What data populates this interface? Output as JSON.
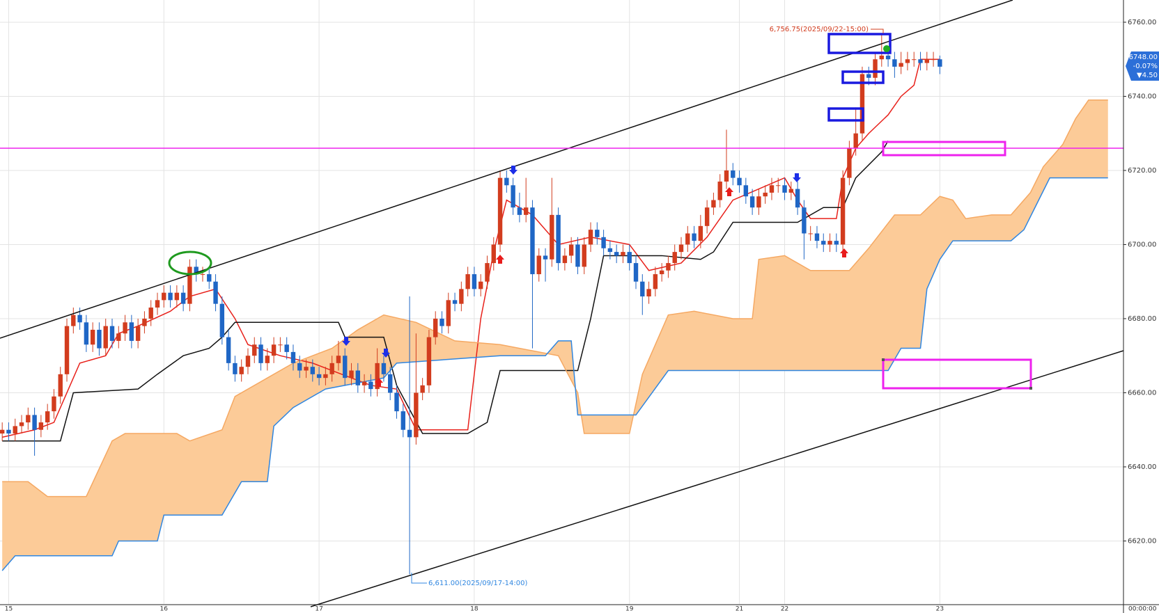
{
  "chart_data": {
    "type": "candlestick",
    "categories": [
      null,
      "15",
      null,
      null,
      null,
      null,
      null,
      null,
      null,
      null,
      null,
      null,
      null,
      null,
      null,
      null,
      null,
      null,
      null,
      null,
      null,
      null,
      null,
      null,
      null,
      "16",
      null,
      null,
      null,
      null,
      null,
      null,
      null,
      null,
      null,
      null,
      null,
      null,
      null,
      null,
      null,
      null,
      null,
      null,
      null,
      null,
      null,
      null,
      null,
      "17",
      null,
      null,
      null,
      null,
      null,
      null,
      null,
      null,
      null,
      null,
      null,
      null,
      null,
      null,
      null,
      null,
      null,
      null,
      null,
      null,
      null,
      null,
      null,
      "18",
      null,
      null,
      null,
      null,
      null,
      null,
      null,
      null,
      null,
      null,
      null,
      null,
      null,
      null,
      null,
      null,
      null,
      null,
      null,
      null,
      null,
      null,
      null,
      "19",
      null,
      null,
      null,
      null,
      null,
      null,
      null,
      null,
      null,
      null,
      null,
      null,
      null,
      null,
      null,
      null,
      "21",
      null,
      null,
      null,
      null,
      null,
      null,
      "22",
      null,
      null,
      null,
      null,
      null,
      null,
      null,
      null,
      null,
      null,
      null,
      null,
      null,
      null,
      null,
      null,
      null,
      null,
      null,
      null,
      null,
      null,
      null,
      "23"
    ],
    "open": [
      6649,
      6650,
      6649,
      6651,
      6652,
      6654,
      6650,
      6652,
      6655,
      6659,
      6665,
      6678,
      6681,
      6679,
      6673,
      6677,
      6672,
      6678,
      6674,
      6676,
      6679,
      6674,
      6678,
      6680,
      6683,
      6685,
      6687,
      6685,
      6687,
      6684,
      6694,
      6692,
      6692,
      6690,
      6684,
      6675,
      6668,
      6665,
      6667,
      6670,
      6673,
      6668,
      6670,
      6673,
      6673,
      6671,
      6668,
      6666,
      6667,
      6665,
      6664,
      6665,
      6668,
      6670,
      6664,
      6666,
      6662,
      6663,
      6661,
      6668,
      6665,
      6660,
      6655,
      6650,
      6648,
      6660,
      6662,
      6675,
      6680,
      6678,
      6685,
      6684,
      6688,
      6692,
      6688,
      6690,
      6695,
      6700,
      6718,
      6716,
      6710,
      6708,
      6710,
      6692,
      6697,
      6696,
      6708,
      6695,
      6697,
      6700,
      6694,
      6700,
      6704,
      6702,
      6699,
      6698,
      6697,
      6698,
      6695,
      6690,
      6686,
      6688,
      6692,
      6693,
      6695,
      6698,
      6700,
      6703,
      6701,
      6705,
      6710,
      6712,
      6717,
      6720,
      6718,
      6716,
      6713,
      6710,
      6713,
      6714,
      6716,
      6716,
      6714,
      6715,
      6710,
      6703,
      6703,
      6701,
      6700,
      6701,
      6700,
      6718,
      6726,
      6730,
      6746,
      6745,
      6750,
      6751,
      6750,
      6748,
      6749,
      6750,
      6750,
      6749,
      6750,
      6750
    ],
    "high": [
      6652,
      6652,
      6653,
      6654,
      6656,
      6656,
      6654,
      6657,
      6661,
      6667,
      6680,
      6683,
      6683,
      6681,
      6679,
      6679,
      6680,
      6680,
      6678,
      6681,
      6681,
      6680,
      6682,
      6685,
      6687,
      6689,
      6689,
      6689,
      6689,
      6696,
      6696,
      6694,
      6694,
      6692,
      6686,
      6677,
      6670,
      6669,
      6672,
      6675,
      6675,
      6672,
      6675,
      6675,
      6675,
      6673,
      6670,
      6669,
      6669,
      6667,
      6667,
      6670,
      6674,
      6672,
      6668,
      6668,
      6665,
      6665,
      6672,
      6670,
      6667,
      6662,
      6657,
      6686,
      6676,
      6664,
      6677,
      6682,
      6682,
      6687,
      6687,
      6690,
      6694,
      6694,
      6692,
      6697,
      6702,
      6720,
      6720,
      6718,
      6714,
      6718,
      6712,
      6699,
      6699,
      6718,
      6710,
      6699,
      6702,
      6702,
      6702,
      6706,
      6706,
      6704,
      6701,
      6700,
      6700,
      6700,
      6697,
      6692,
      6690,
      6694,
      6695,
      6697,
      6700,
      6702,
      6705,
      6705,
      6708,
      6712,
      6714,
      6719,
      6731,
      6722,
      6720,
      6718,
      6715,
      6715,
      6716,
      6718,
      6718,
      6718,
      6717,
      6717,
      6712,
      6705,
      6705,
      6703,
      6703,
      6703,
      6720,
      6728,
      6737,
      6748,
      6748,
      6752,
      6756.75,
      6753,
      6752,
      6752,
      6752,
      6752,
      6752,
      6752,
      6752,
      6751
    ],
    "low": [
      6647,
      6647,
      6647,
      6649,
      6650,
      6643,
      6648,
      6650,
      6653,
      6657,
      6663,
      6676,
      6677,
      6671,
      6671,
      6670,
      6670,
      6672,
      6672,
      6674,
      6672,
      6672,
      6676,
      6678,
      6681,
      6683,
      6683,
      6683,
      6682,
      6682,
      6690,
      6690,
      6688,
      6682,
      6673,
      6666,
      6663,
      6663,
      6665,
      6668,
      6666,
      6666,
      6668,
      6671,
      6669,
      6666,
      6664,
      6664,
      6663,
      6662,
      6662,
      6663,
      6666,
      6662,
      6662,
      6660,
      6660,
      6659,
      6659,
      6663,
      6658,
      6653,
      6648,
      6611,
      6646,
      6658,
      6660,
      6673,
      6676,
      6676,
      6682,
      6682,
      6686,
      6686,
      6686,
      6688,
      6693,
      6698,
      6714,
      6708,
      6706,
      6706,
      6672,
      6690,
      6690,
      6694,
      6693,
      6693,
      6695,
      6692,
      6692,
      6698,
      6700,
      6697,
      6696,
      6695,
      6695,
      6693,
      6688,
      6681,
      6684,
      6686,
      6690,
      6691,
      6693,
      6696,
      6698,
      6699,
      6699,
      6703,
      6708,
      6710,
      6715,
      6716,
      6714,
      6711,
      6708,
      6708,
      6711,
      6712,
      6714,
      6712,
      6712,
      6708,
      6696,
      6701,
      6699,
      6698,
      6698,
      6698,
      6698,
      6716,
      6724,
      6728,
      6743,
      6743,
      6748,
      6748,
      6745,
      6746,
      6747,
      6748,
      6747,
      6747,
      6748,
      6746
    ],
    "close": [
      6650,
      6649,
      6651,
      6652,
      6654,
      6650,
      6652,
      6655,
      6659,
      6665,
      6678,
      6681,
      6679,
      6673,
      6677,
      6672,
      6678,
      6674,
      6676,
      6679,
      6674,
      6678,
      6680,
      6683,
      6685,
      6687,
      6685,
      6687,
      6684,
      6694,
      6692,
      6692,
      6690,
      6684,
      6675,
      6668,
      6665,
      6667,
      6670,
      6673,
      6668,
      6670,
      6673,
      6673,
      6671,
      6668,
      6666,
      6667,
      6665,
      6664,
      6665,
      6668,
      6670,
      6664,
      6666,
      6662,
      6663,
      6661,
      6668,
      6665,
      6660,
      6655,
      6650,
      6648,
      6660,
      6662,
      6675,
      6680,
      6678,
      6685,
      6684,
      6688,
      6692,
      6688,
      6690,
      6695,
      6700,
      6718,
      6716,
      6710,
      6708,
      6710,
      6692,
      6697,
      6696,
      6708,
      6695,
      6697,
      6700,
      6694,
      6700,
      6704,
      6702,
      6699,
      6698,
      6697,
      6698,
      6695,
      6690,
      6686,
      6688,
      6692,
      6693,
      6695,
      6698,
      6700,
      6703,
      6701,
      6705,
      6710,
      6712,
      6717,
      6720,
      6718,
      6716,
      6713,
      6710,
      6713,
      6714,
      6716,
      6716,
      6714,
      6715,
      6710,
      6703,
      6703,
      6701,
      6700,
      6701,
      6700,
      6718,
      6726,
      6730,
      6746,
      6745,
      6750,
      6751,
      6750,
      6748,
      6749,
      6750,
      6750,
      6749,
      6750,
      6750,
      6748
    ],
    "up_color": "#d23c1e",
    "down_color": "#1f66c5",
    "lines": [
      {
        "color": "#e8201a",
        "x": [
          0,
          5,
          8,
          10,
          12,
          16,
          18,
          21,
          26,
          29,
          33,
          36,
          38,
          43,
          48,
          51,
          54,
          57,
          61,
          64,
          72,
          74,
          76,
          78,
          82,
          86,
          91,
          97,
          100,
          105,
          109,
          113,
          117,
          121,
          123,
          125,
          129,
          130,
          132,
          134,
          137,
          139,
          141,
          142,
          145
        ],
        "values": [
          6648,
          6650,
          6652,
          6660,
          6668,
          6670,
          6676,
          6678,
          6682,
          6686,
          6688,
          6680,
          6673,
          6670,
          6668,
          6666,
          6664,
          6662,
          6661,
          6650,
          6650,
          6680,
          6698,
          6712,
          6708,
          6700,
          6702,
          6700,
          6693,
          6695,
          6702,
          6712,
          6715,
          6718,
          6712,
          6707,
          6707,
          6718,
          6726,
          6730,
          6735,
          6740,
          6743,
          6750,
          6750
        ]
      },
      {
        "color": "#111111",
        "x": [
          0,
          9,
          11,
          21,
          24,
          28,
          32,
          34,
          36,
          52,
          53,
          59,
          61,
          65,
          72,
          75,
          77,
          89,
          91,
          93,
          102,
          108,
          110,
          113,
          123,
          127,
          130,
          132,
          136,
          137
        ],
        "values": [
          6647,
          6647,
          6660,
          6661,
          6665,
          6670,
          6672,
          6675,
          6679,
          6679,
          6675,
          6675,
          6662,
          6649,
          6649,
          6652,
          6666,
          6666,
          6680,
          6697,
          6697,
          6696,
          6698,
          6706,
          6706,
          6710,
          6710,
          6718,
          6725,
          6728
        ]
      },
      {
        "color": "#f5a862",
        "x": [
          0,
          4,
          7,
          13,
          17,
          19,
          27,
          29,
          34,
          36,
          41,
          45,
          51,
          55,
          59,
          64,
          70,
          77,
          86,
          89,
          90,
          97,
          99,
          103,
          107,
          113,
          116,
          117,
          121,
          125,
          131,
          134,
          138,
          142,
          145,
          147,
          149,
          153,
          156,
          159,
          161,
          164,
          166,
          168,
          171
        ],
        "values": [
          6636,
          6636,
          6632,
          6632,
          6647,
          6649,
          6649,
          6647,
          6650,
          6659,
          6664,
          6668,
          6672,
          6677,
          6681,
          6679,
          6674,
          6673,
          6670,
          6660,
          6649,
          6649,
          6665,
          6681,
          6682,
          6680,
          6680,
          6696,
          6697,
          6693,
          6693,
          6699,
          6708,
          6708,
          6713,
          6712,
          6707,
          6708,
          6708,
          6714,
          6721,
          6727,
          6734,
          6739,
          6739
        ]
      },
      {
        "color": "#2f86e0",
        "x": [
          0,
          2,
          17,
          18,
          24,
          25,
          34,
          37,
          41,
          42,
          45,
          50,
          59,
          61,
          77,
          84,
          86,
          88,
          89,
          98,
          103,
          137,
          139,
          142,
          143,
          145,
          147,
          156,
          158,
          160,
          162,
          171
        ],
        "values": [
          6612,
          6616,
          6616,
          6620,
          6620,
          6627,
          6627,
          6636,
          6636,
          6651,
          6656,
          6661,
          6664,
          6668,
          6670,
          6670,
          6674,
          6674,
          6654,
          6654,
          6666,
          6666,
          6672,
          6672,
          6688,
          6696,
          6701,
          6701,
          6704,
          6711,
          6718,
          6718
        ]
      }
    ],
    "cloud_color": "#fccb98",
    "ylim": [
      6603,
      6766
    ],
    "yticks": [
      {
        "value": 6620,
        "label": "6620.00"
      },
      {
        "value": 6640,
        "label": "6640.00"
      },
      {
        "value": 6660,
        "label": "6660.00"
      },
      {
        "value": 6680,
        "label": "6680.00"
      },
      {
        "value": 6700,
        "label": "6700.00"
      },
      {
        "value": 6720,
        "label": "6720.00"
      },
      {
        "value": 6740,
        "label": "6740.00"
      },
      {
        "value": 6760,
        "label": "6760.00"
      }
    ],
    "grid": true,
    "annotations": [
      "6,756.75(2025/09/22-15:00)",
      "6,611.00(2025/09/17-14:00)"
    ],
    "price_tag": {
      "price": "6748.00",
      "change_pct": "-0.07%",
      "change": "▼4.50"
    },
    "corner_label": "00:00:00"
  }
}
